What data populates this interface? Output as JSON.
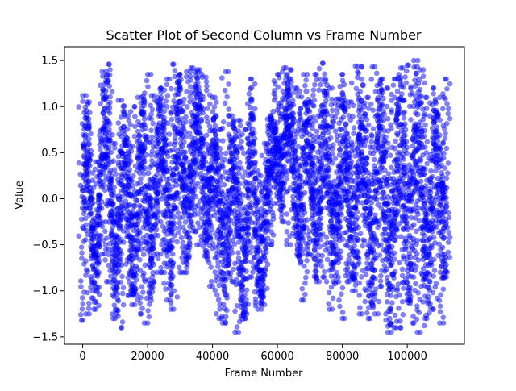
{
  "chart_data": {
    "type": "scatter",
    "title": "Scatter Plot of Second Column vs Frame Number",
    "xlabel": "Frame Number",
    "ylabel": "Value",
    "xlim": [
      -5600,
      117600
    ],
    "ylim": [
      -1.58,
      1.65
    ],
    "xticks": [
      0,
      20000,
      40000,
      60000,
      80000,
      100000
    ],
    "xtick_labels": [
      "0",
      "20000",
      "40000",
      "60000",
      "80000",
      "100000"
    ],
    "yticks": [
      -1.5,
      -1.0,
      -0.5,
      0.0,
      0.5,
      1.0,
      1.5
    ],
    "ytick_labels": [
      "−1.5",
      "−1.0",
      "−0.5",
      "0.0",
      "0.5",
      "1.0",
      "1.5"
    ],
    "grid": false,
    "marker_color": "#0000ff",
    "marker_alpha": 0.5,
    "point_count_estimate": 112000,
    "series": [
      {
        "envelope": {
          "x": [
            0,
            2000,
            4000,
            6000,
            8000,
            10000,
            12000,
            14000,
            16000,
            18000,
            20000,
            22000,
            24000,
            26000,
            28000,
            30000,
            32000,
            34000,
            36000,
            38000,
            40000,
            42000,
            44000,
            46000,
            48000,
            50000,
            52000,
            54000,
            56000,
            58000,
            60000,
            62000,
            64000,
            66000,
            68000,
            70000,
            72000,
            74000,
            76000,
            78000,
            80000,
            82000,
            84000,
            86000,
            88000,
            90000,
            92000,
            94000,
            96000,
            98000,
            100000,
            102000,
            104000,
            106000,
            108000,
            110000,
            112000
          ],
          "y_max": [
            1.12,
            1.05,
            0.4,
            1.38,
            1.46,
            0.6,
            1.07,
            0.9,
            1.0,
            1.1,
            1.35,
            1.12,
            1.2,
            1.3,
            1.46,
            1.35,
            1.38,
            1.42,
            1.4,
            1.32,
            1.1,
            0.75,
            1.38,
            0.9,
            0.85,
            0.75,
            1.3,
            0.3,
            0.6,
            0.9,
            1.35,
            1.42,
            1.4,
            1.2,
            1.35,
            1.05,
            1.35,
            1.47,
            1.2,
            1.08,
            1.35,
            1.05,
            1.44,
            1.43,
            1.1,
            1.43,
            1.3,
            1.2,
            1.3,
            1.42,
            1.45,
            1.5,
            1.4,
            1.1,
            1.2,
            1.1,
            1.3
          ],
          "y_min": [
            -1.32,
            -1.25,
            -1.2,
            -0.6,
            -0.9,
            -1.3,
            -1.4,
            -1.05,
            -1.15,
            -1.25,
            -1.35,
            -0.9,
            -0.8,
            -1.1,
            -1.2,
            -0.8,
            -0.8,
            -0.35,
            -0.5,
            -0.62,
            -0.95,
            -1.3,
            -1.35,
            -0.9,
            -1.45,
            -1.3,
            -0.85,
            -1.2,
            -1.15,
            -0.5,
            -0.05,
            -0.25,
            -0.5,
            -0.6,
            -1.1,
            -0.6,
            -0.9,
            -0.85,
            -1.2,
            -0.9,
            -1.3,
            -0.9,
            -1.0,
            -1.25,
            -1.3,
            -1.25,
            -0.95,
            -1.45,
            -1.4,
            -1.4,
            -1.1,
            -1.35,
            -1.45,
            -1.3,
            -1.2,
            -1.35,
            -0.85
          ]
        }
      }
    ]
  }
}
